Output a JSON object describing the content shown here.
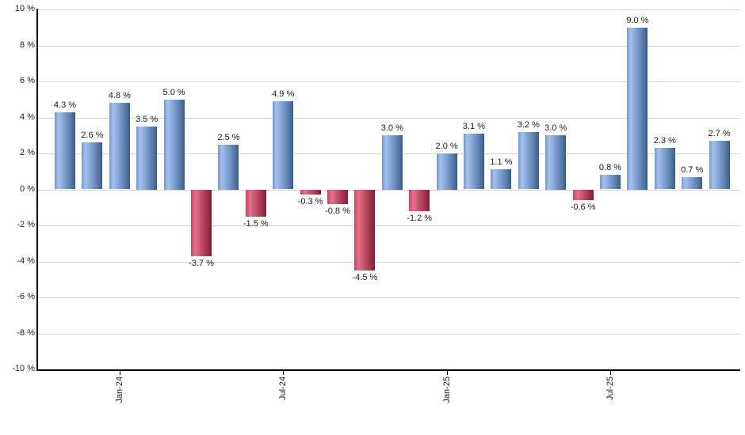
{
  "chart_data": {
    "type": "bar",
    "title": "",
    "values": [
      4.3,
      2.6,
      4.8,
      3.5,
      5.0,
      -3.7,
      2.5,
      -1.5,
      4.9,
      -0.3,
      -0.8,
      -4.5,
      3.0,
      -1.2,
      2.0,
      3.1,
      1.1,
      3.2,
      3.0,
      -0.6,
      0.8,
      9.0,
      2.3,
      0.7,
      2.7
    ],
    "bar_value_labels": [
      "4.3 %",
      "2.6 %",
      "4.8 %",
      "3.5 %",
      "5.0 %",
      "-3.7 %",
      "2.5 %",
      "-1.5 %",
      "4.9 %",
      "-0.3 %",
      "-0.8 %",
      "-4.5 %",
      "3.0 %",
      "-1.2 %",
      "2.0 %",
      "3.1 %",
      "1.1 %",
      "3.2 %",
      "3.0 %",
      "-0.6 %",
      "0.8 %",
      "9.0 %",
      "2.3 %",
      "0.7 %",
      "2.7 %"
    ],
    "x_ticks": [
      {
        "bar_index": 2,
        "label": "Jan-24"
      },
      {
        "bar_index": 8,
        "label": "Jul-24"
      },
      {
        "bar_index": 14,
        "label": "Jan-25"
      },
      {
        "bar_index": 20,
        "label": "Jul-25"
      }
    ],
    "y_tick_labels": [
      "10 %",
      "8 %",
      "6 %",
      "4 %",
      "2 %",
      "0 %",
      "-2 %",
      "-4 %",
      "-6 %",
      "-8 %",
      "-10 %"
    ],
    "ylim": [
      -10,
      10
    ],
    "y_step": 2,
    "grid": "horizontal",
    "legend": "none",
    "colors": {
      "positive_bar_gradient": [
        "#6f96d6",
        "#a6c0ea",
        "#7e9fd3",
        "#54779f",
        "#3a5a90"
      ],
      "negative_bar_gradient": [
        "#d93b62",
        "#e07189",
        "#c25168",
        "#9e3048",
        "#7e2038"
      ],
      "gridline": "#d4d4d4",
      "axis": "#000000",
      "text": "#1a1a1a",
      "background": "#ffffff"
    }
  }
}
